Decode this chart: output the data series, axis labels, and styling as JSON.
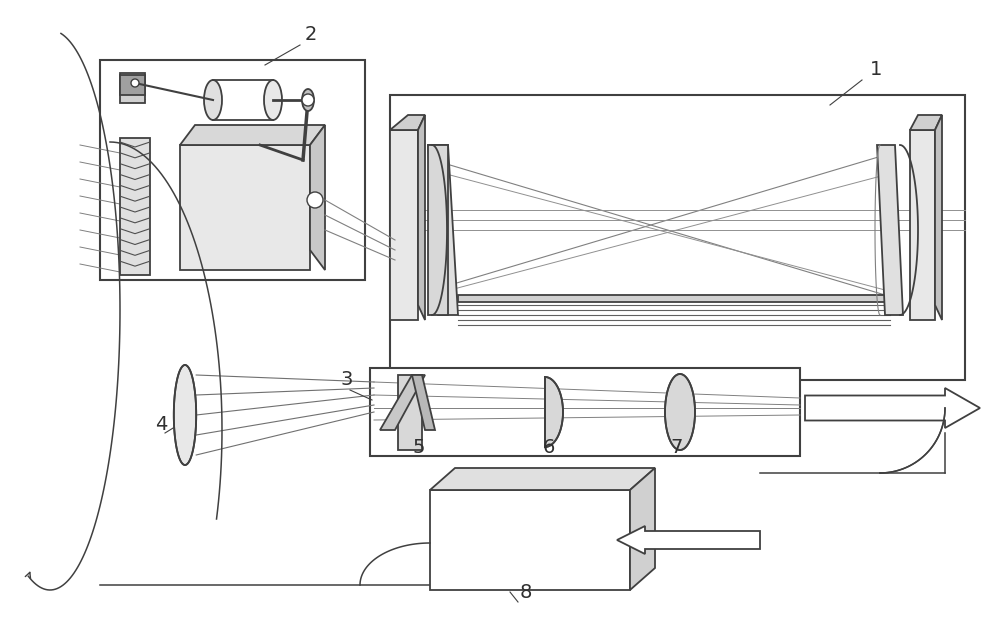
{
  "bg_color": "#ffffff",
  "lc": "#404040",
  "lw": 1.3,
  "fig_width": 10.0,
  "fig_height": 6.29
}
